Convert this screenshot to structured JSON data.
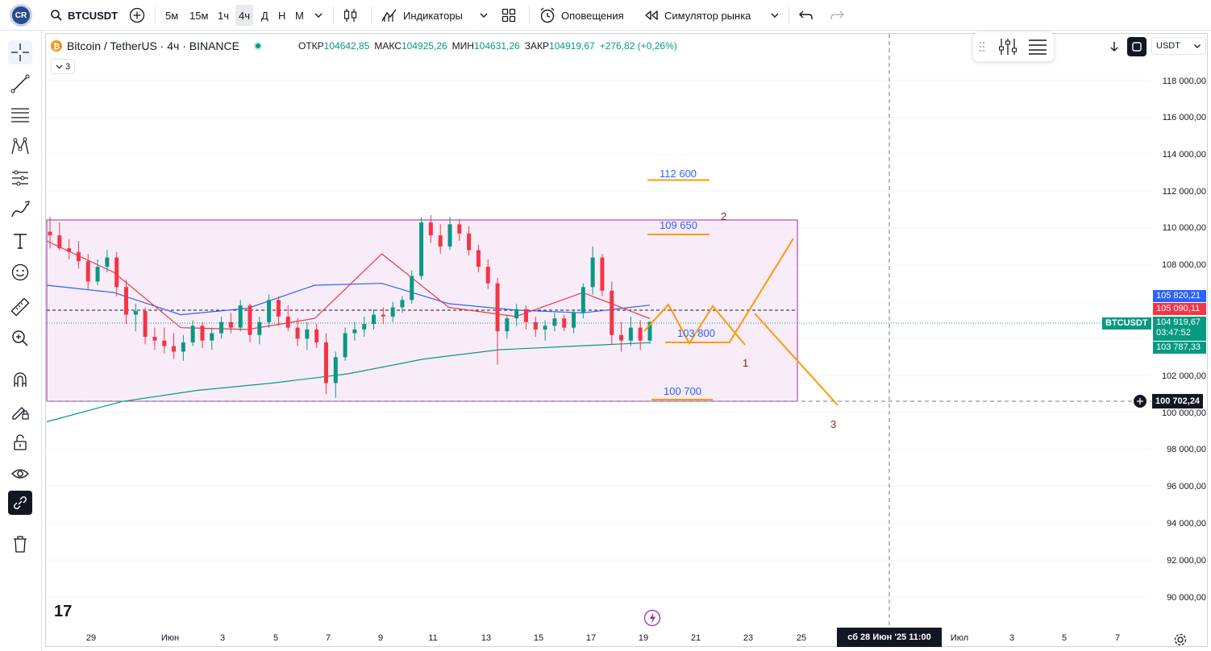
{
  "toolbar": {
    "symbol": "BTCUSDT",
    "timeframes": [
      "5м",
      "15м",
      "1ч",
      "4ч",
      "Д",
      "Н",
      "М"
    ],
    "active_timeframe": "4ч",
    "indicators_label": "Индикаторы",
    "alerts_label": "Оповещения",
    "simulator_label": "Симулятор рынка"
  },
  "legend": {
    "title": "Bitcoin / TetherUS · 4ч · BINANCE",
    "open_label": "ОТКР",
    "open": "104642,85",
    "high_label": "МАКС",
    "high": "104925,26",
    "low_label": "МИН",
    "low": "104631,26",
    "close_label": "ЗАКР",
    "close": "104919,67",
    "change": "+276,82 (+0,26%)",
    "indicator_count": "3"
  },
  "currency": "USDT",
  "price_axis": [
    "118 000,00",
    "116 000,00",
    "114 000,00",
    "112 000,00",
    "110 000,00",
    "108 000,00",
    "102 000,00",
    "100 000,00",
    "98 000,00",
    "96 000,00",
    "94 000,00",
    "92 000,00",
    "90 000,00"
  ],
  "price_tags": {
    "ma_blue": "105 820,21",
    "ma_red": "105 090,11",
    "last": "104 919,67",
    "countdown": "03:47:52",
    "ma_green": "103 787,33",
    "cursor": "100 702,24",
    "symbol_tag": "BTCUSDT"
  },
  "time_axis": [
    "29",
    "Июн",
    "3",
    "5",
    "7",
    "9",
    "11",
    "13",
    "15",
    "17",
    "19",
    "21",
    "23",
    "25",
    "Июл",
    "3",
    "5",
    "7"
  ],
  "cursor_date": "сб 28 Июн '25   11:00",
  "annotations": {
    "l1": "112 600",
    "l2": "109 650",
    "l3": "103 800",
    "l4": "100 700",
    "w1": "1",
    "w2": "2",
    "w3": "3"
  },
  "colors": {
    "up": "#089981",
    "down": "#f23645",
    "ma_blue": "#2962ff",
    "ma_red": "#f23645",
    "ma_green": "#089981",
    "projection": "#ff9800",
    "rect_border": "#9c27b0",
    "rect_fill": "#f3e5f5"
  },
  "chart_data": {
    "type": "candlestick",
    "symbol": "BTCUSDT",
    "ylim": [
      89000,
      119500
    ],
    "series": [
      {
        "name": "MA blue",
        "values": [
          106900,
          106500,
          105300,
          105650,
          106900,
          107000,
          105900,
          105550,
          105400,
          105820
        ]
      },
      {
        "name": "MA red",
        "values": [
          109300,
          107600,
          104600,
          104500,
          105100,
          108600,
          105700,
          105200,
          106500,
          105090
        ]
      },
      {
        "name": "MA green",
        "values": [
          99500,
          100600,
          101200,
          101600,
          102100,
          102900,
          103400,
          103600,
          103787
        ]
      }
    ],
    "candles": [
      [
        109800,
        110600,
        108900,
        109600
      ],
      [
        109600,
        110300,
        108800,
        108900
      ],
      [
        108900,
        109400,
        108300,
        108700
      ],
      [
        108700,
        109300,
        107800,
        108200
      ],
      [
        108200,
        108600,
        106700,
        107100
      ],
      [
        107100,
        108300,
        106900,
        107900
      ],
      [
        107900,
        108800,
        107600,
        108400
      ],
      [
        108400,
        108700,
        106300,
        106800
      ],
      [
        106800,
        107200,
        104800,
        105300
      ],
      [
        105300,
        105900,
        104400,
        105500
      ],
      [
        105500,
        105700,
        103700,
        104100
      ],
      [
        104100,
        104600,
        103400,
        103900
      ],
      [
        103900,
        104600,
        103200,
        103600
      ],
      [
        103600,
        104300,
        102900,
        103300
      ],
      [
        103300,
        104200,
        102800,
        103800
      ],
      [
        103800,
        105000,
        103600,
        104700
      ],
      [
        104700,
        104900,
        103500,
        103900
      ],
      [
        103900,
        104600,
        103400,
        104300
      ],
      [
        104300,
        105200,
        104000,
        104900
      ],
      [
        104900,
        105400,
        104300,
        104600
      ],
      [
        104600,
        106100,
        104400,
        105800
      ],
      [
        105800,
        105900,
        103800,
        104200
      ],
      [
        104200,
        105200,
        103700,
        104900
      ],
      [
        104900,
        106400,
        104600,
        106100
      ],
      [
        106100,
        106300,
        104700,
        105200
      ],
      [
        105200,
        105800,
        104400,
        104600
      ],
      [
        104600,
        105100,
        103600,
        104000
      ],
      [
        104000,
        104900,
        103400,
        104500
      ],
      [
        104500,
        104800,
        103500,
        103800
      ],
      [
        103800,
        104300,
        101000,
        101600
      ],
      [
        101600,
        103300,
        100800,
        103000
      ],
      [
        103000,
        104600,
        102800,
        104300
      ],
      [
        104300,
        104900,
        103900,
        104500
      ],
      [
        104500,
        105200,
        104100,
        104800
      ],
      [
        104800,
        105600,
        104500,
        105300
      ],
      [
        105300,
        105700,
        104800,
        105200
      ],
      [
        105200,
        106000,
        104900,
        105700
      ],
      [
        105700,
        106300,
        105400,
        106100
      ],
      [
        106100,
        107700,
        105900,
        107400
      ],
      [
        107400,
        110600,
        107200,
        110300
      ],
      [
        110300,
        110700,
        109200,
        109600
      ],
      [
        109600,
        110200,
        108600,
        109000
      ],
      [
        109000,
        110600,
        108800,
        110200
      ],
      [
        110200,
        110500,
        109300,
        109700
      ],
      [
        109700,
        110100,
        108500,
        108800
      ],
      [
        108800,
        109100,
        107600,
        107900
      ],
      [
        107900,
        108300,
        106700,
        107000
      ],
      [
        107000,
        107300,
        102600,
        104400
      ],
      [
        104400,
        105300,
        104000,
        105100
      ],
      [
        105100,
        105900,
        104700,
        105600
      ],
      [
        105600,
        105800,
        104500,
        104900
      ],
      [
        104900,
        105200,
        104100,
        104500
      ],
      [
        104500,
        105000,
        103900,
        104700
      ],
      [
        104700,
        105400,
        104400,
        105100
      ],
      [
        105100,
        105300,
        104400,
        104600
      ],
      [
        104600,
        105600,
        104300,
        105400
      ],
      [
        105400,
        107000,
        105100,
        106800
      ],
      [
        106800,
        109000,
        106400,
        108400
      ],
      [
        108400,
        108600,
        106300,
        106600
      ],
      [
        106600,
        107100,
        103700,
        104200
      ],
      [
        104200,
        104900,
        103300,
        103900
      ],
      [
        103900,
        105200,
        103600,
        104600
      ],
      [
        104600,
        105000,
        103400,
        103900
      ],
      [
        103900,
        104800,
        103700,
        104920
      ]
    ],
    "horizontal_levels": [
      112600,
      109650,
      103800,
      100700
    ],
    "range_box": [
      100700,
      110500
    ],
    "last_price": 104919.67
  }
}
